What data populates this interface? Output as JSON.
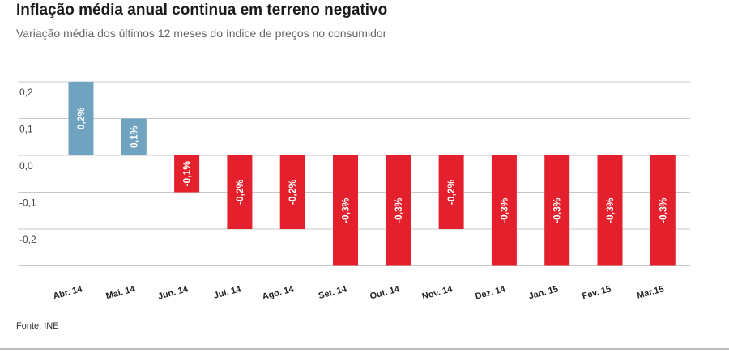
{
  "title": "Inflação média anual continua em terreno negativo",
  "subtitle": "Variação média dos últimos 12 meses do índice de preços no consumidor",
  "source": "Fonte: INE",
  "chart_data": {
    "type": "bar",
    "categories": [
      "Abr. 14",
      "Mai. 14",
      "Jun. 14",
      "Jul. 14",
      "Ago. 14",
      "Set. 14",
      "Out. 14",
      "Nov. 14",
      "Dez. 14",
      "Jan. 15",
      "Fev. 15",
      "Mar.15"
    ],
    "values": [
      0.2,
      0.1,
      -0.1,
      -0.2,
      -0.2,
      -0.3,
      -0.3,
      -0.2,
      -0.3,
      -0.3,
      -0.3,
      -0.3
    ],
    "data_labels": [
      "0,2%",
      "0,1%",
      "-0,1%",
      "-0,2%",
      "-0,2%",
      "-0,3%",
      "-0,3%",
      "-0,2%",
      "-0,3%",
      "-0,3%",
      "-0,3%",
      "-0,3%"
    ],
    "yticks": [
      0.2,
      0.1,
      0.0,
      -0.1,
      -0.2
    ],
    "ytick_labels": [
      "0,2",
      "0,1",
      "0,0",
      "-0,1",
      "-0,2"
    ],
    "ylim": [
      -0.3,
      0.2
    ],
    "grid": true,
    "colors": {
      "positive": "#6fa3bf",
      "negative": "#e3202b",
      "grid": "#c8c8c8"
    }
  }
}
